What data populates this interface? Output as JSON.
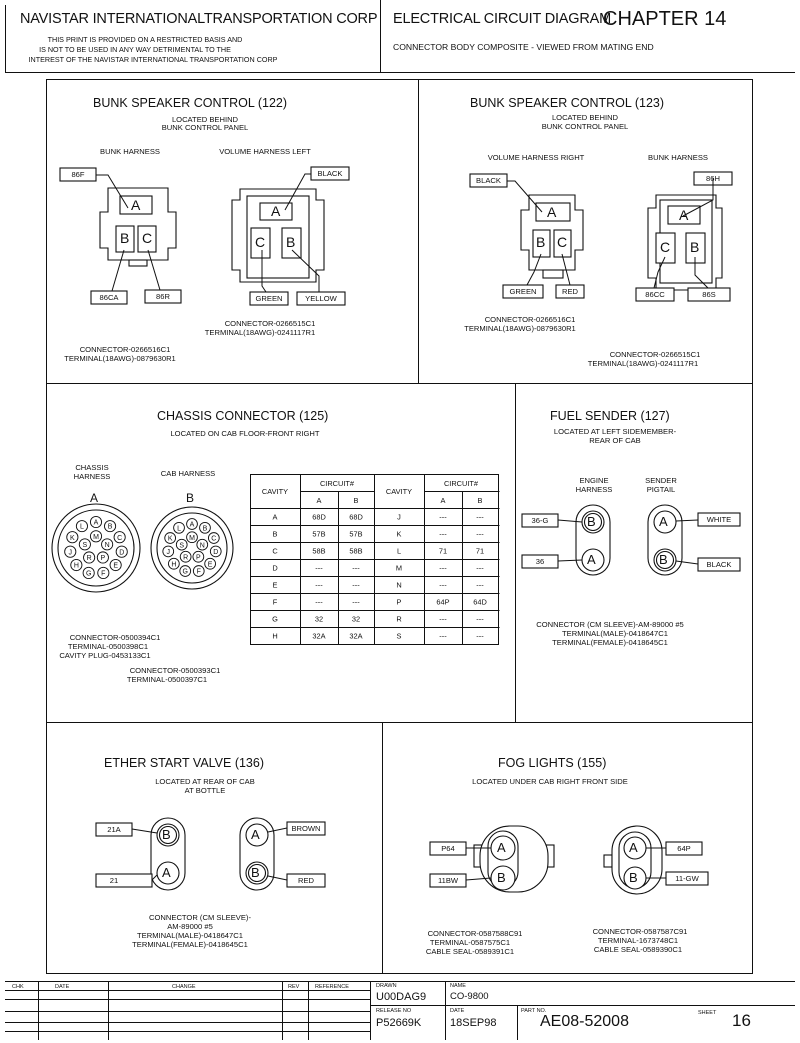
{
  "header": {
    "company": "NAVISTAR INTERNATIONALTRANSPORTATION CORP",
    "disclaimer": [
      "THIS PRINT IS PROVIDED ON A RESTRICTED BASIS AND",
      "IS NOT TO BE USED IN ANY WAY DETRIMENTAL TO THE",
      "INTEREST OF THE NAVISTAR INTERNATIONAL TRANSPORTATION CORP"
    ],
    "diagram_title": "ELECTRICAL CIRCUIT DIAGRAM",
    "chapter": "CHAPTER 14",
    "subtitle": "CONNECTOR BODY COMPOSITE - VIEWED FROM MATING END"
  },
  "bunk122": {
    "title": "BUNK SPEAKER CONTROL (122)",
    "location": [
      "LOCATED BEHIND",
      "BUNK CONTROL PANEL"
    ],
    "left_harness": "BUNK HARNESS",
    "right_harness": "VOLUME HARNESS LEFT",
    "wires": {
      "a": "86F",
      "b": "86CA",
      "c": "86R",
      "black": "BLACK",
      "green": "GREEN",
      "yellow": "YELLOW"
    },
    "cavities": {
      "a": "A",
      "b": "B",
      "c": "C"
    },
    "connector_right": [
      "CONNECTOR-0266515C1",
      "TERMINAL(18AWG)-0241117R1"
    ],
    "connector_left": [
      "CONNECTOR-0266516C1",
      "TERMINAL(18AWG)-0879630R1"
    ]
  },
  "bunk123": {
    "title": "BUNK SPEAKER CONTROL (123)",
    "location": [
      "LOCATED BEHIND",
      "BUNK CONTROL PANEL"
    ],
    "left_harness": "VOLUME HARNESS RIGHT",
    "right_harness": "BUNK HARNESS",
    "wires": {
      "black": "BLACK",
      "green": "GREEN",
      "red": "RED",
      "a": "86H",
      "c": "86CC",
      "b": "86S"
    },
    "cavities": {
      "a": "A",
      "b": "B",
      "c": "C"
    },
    "connector_left": [
      "CONNECTOR-0266516C1",
      "TERMINAL(18AWG)-0879630R1"
    ],
    "connector_right": [
      "CONNECTOR-0266515C1",
      "TERMINAL(18AWG)-0241117R1"
    ]
  },
  "chassis": {
    "title": "CHASSIS CONNECTOR (125)",
    "location": "LOCATED ON CAB FLOOR-FRONT RIGHT",
    "left_label": [
      "CHASSIS",
      "HARNESS"
    ],
    "right_label": "CAB HARNESS",
    "left_letter": "A",
    "right_letter": "B",
    "pins_left": [
      "A",
      "B",
      "C",
      "D",
      "E",
      "F",
      "G",
      "H",
      "J",
      "K",
      "L",
      "M",
      "N",
      "P",
      "R",
      "S"
    ],
    "pins_right": [
      "A",
      "B",
      "C",
      "D",
      "E",
      "F",
      "G",
      "H",
      "J",
      "K",
      "L",
      "M",
      "N",
      "P",
      "R",
      "S"
    ],
    "table": {
      "cavity_header": "CAVITY",
      "circuit_header": "CIRCUIT#",
      "a_header": "A",
      "b_header": "B",
      "left_rows": [
        [
          "A",
          "68D",
          "68D"
        ],
        [
          "B",
          "57B",
          "57B"
        ],
        [
          "C",
          "58B",
          "58B"
        ],
        [
          "D",
          "---",
          "---"
        ],
        [
          "E",
          "---",
          "---"
        ],
        [
          "F",
          "---",
          "---"
        ],
        [
          "G",
          "32",
          "32"
        ],
        [
          "H",
          "32A",
          "32A"
        ]
      ],
      "right_rows": [
        [
          "J",
          "---",
          "---"
        ],
        [
          "K",
          "---",
          "---"
        ],
        [
          "L",
          "71",
          "71"
        ],
        [
          "M",
          "---",
          "---"
        ],
        [
          "N",
          "---",
          "---"
        ],
        [
          "P",
          "64P",
          "64D"
        ],
        [
          "R",
          "---",
          "---"
        ],
        [
          "S",
          "---",
          "---"
        ]
      ]
    },
    "connector_a": [
      "CONNECTOR-0500394C1",
      "TERMINAL-0500398C1",
      "CAVITY PLUG-0453133C1"
    ],
    "connector_b": [
      "CONNECTOR-0500393C1",
      "TERMINAL-0500397C1"
    ]
  },
  "fuel": {
    "title": "FUEL SENDER (127)",
    "location": [
      "LOCATED AT LEFT SIDEMEMBER-",
      "REAR OF CAB"
    ],
    "left_label": [
      "ENGINE",
      "HARNESS"
    ],
    "right_label": [
      "SENDER",
      "PIGTAIL"
    ],
    "wires": {
      "b_left": "36-G",
      "a_left": "36",
      "a_right": "WHITE",
      "b_right": "BLACK"
    },
    "cavities": {
      "a": "A",
      "b": "B"
    },
    "connector": [
      "CONNECTOR (CM SLEEVE)-AM-89000 #5",
      "TERMINAL(MALE)-0418647C1",
      "TERMINAL(FEMALE)-0418645C1"
    ]
  },
  "ether": {
    "title": "ETHER START VALVE (136)",
    "location": [
      "LOCATED AT REAR OF CAB",
      "AT BOTTLE"
    ],
    "wires": {
      "b_left": "21A",
      "a_left": "21",
      "a_right": "BROWN",
      "b_right": "RED"
    },
    "cavities": {
      "a": "A",
      "b": "B"
    },
    "connector": [
      "CONNECTOR (CM SLEEVE)-",
      "AM-89000 #5",
      "TERMINAL(MALE)-0418647C1",
      "TERMINAL(FEMALE)-0418645C1"
    ]
  },
  "fog": {
    "title": "FOG LIGHTS (155)",
    "location": "LOCATED UNDER CAB RIGHT FRONT SIDE",
    "wires": {
      "a_left": "P64",
      "b_left": "11BW",
      "a_right": "64P",
      "b_right": "11-GW"
    },
    "cavities": {
      "a": "A",
      "b": "B"
    },
    "connector_left": [
      "CONNECTOR-0587588C91",
      "TERMINAL-0587575C1",
      "CABLE SEAL-0589391C1"
    ],
    "connector_right": [
      "CONNECTOR-0587587C91",
      "TERMINAL-1673748C1",
      "CABLE SEAL-0589390C1"
    ]
  },
  "titleblock": {
    "chk": "CHK",
    "date": "DATE",
    "change": "CHANGE",
    "rev": "REV",
    "reference": "REFERENCE",
    "drawn_label": "DRAWN",
    "drawn": "U00DAG9",
    "name_label": "NAME",
    "name": "CO-9800",
    "release_label": "RELEASE NO",
    "release": "P52669K",
    "date_label": "DATE",
    "date_value": "18SEP98",
    "part_label": "PART NO.",
    "part": "AE08-52008",
    "sheet_label": "SHEET",
    "sheet": "16"
  }
}
